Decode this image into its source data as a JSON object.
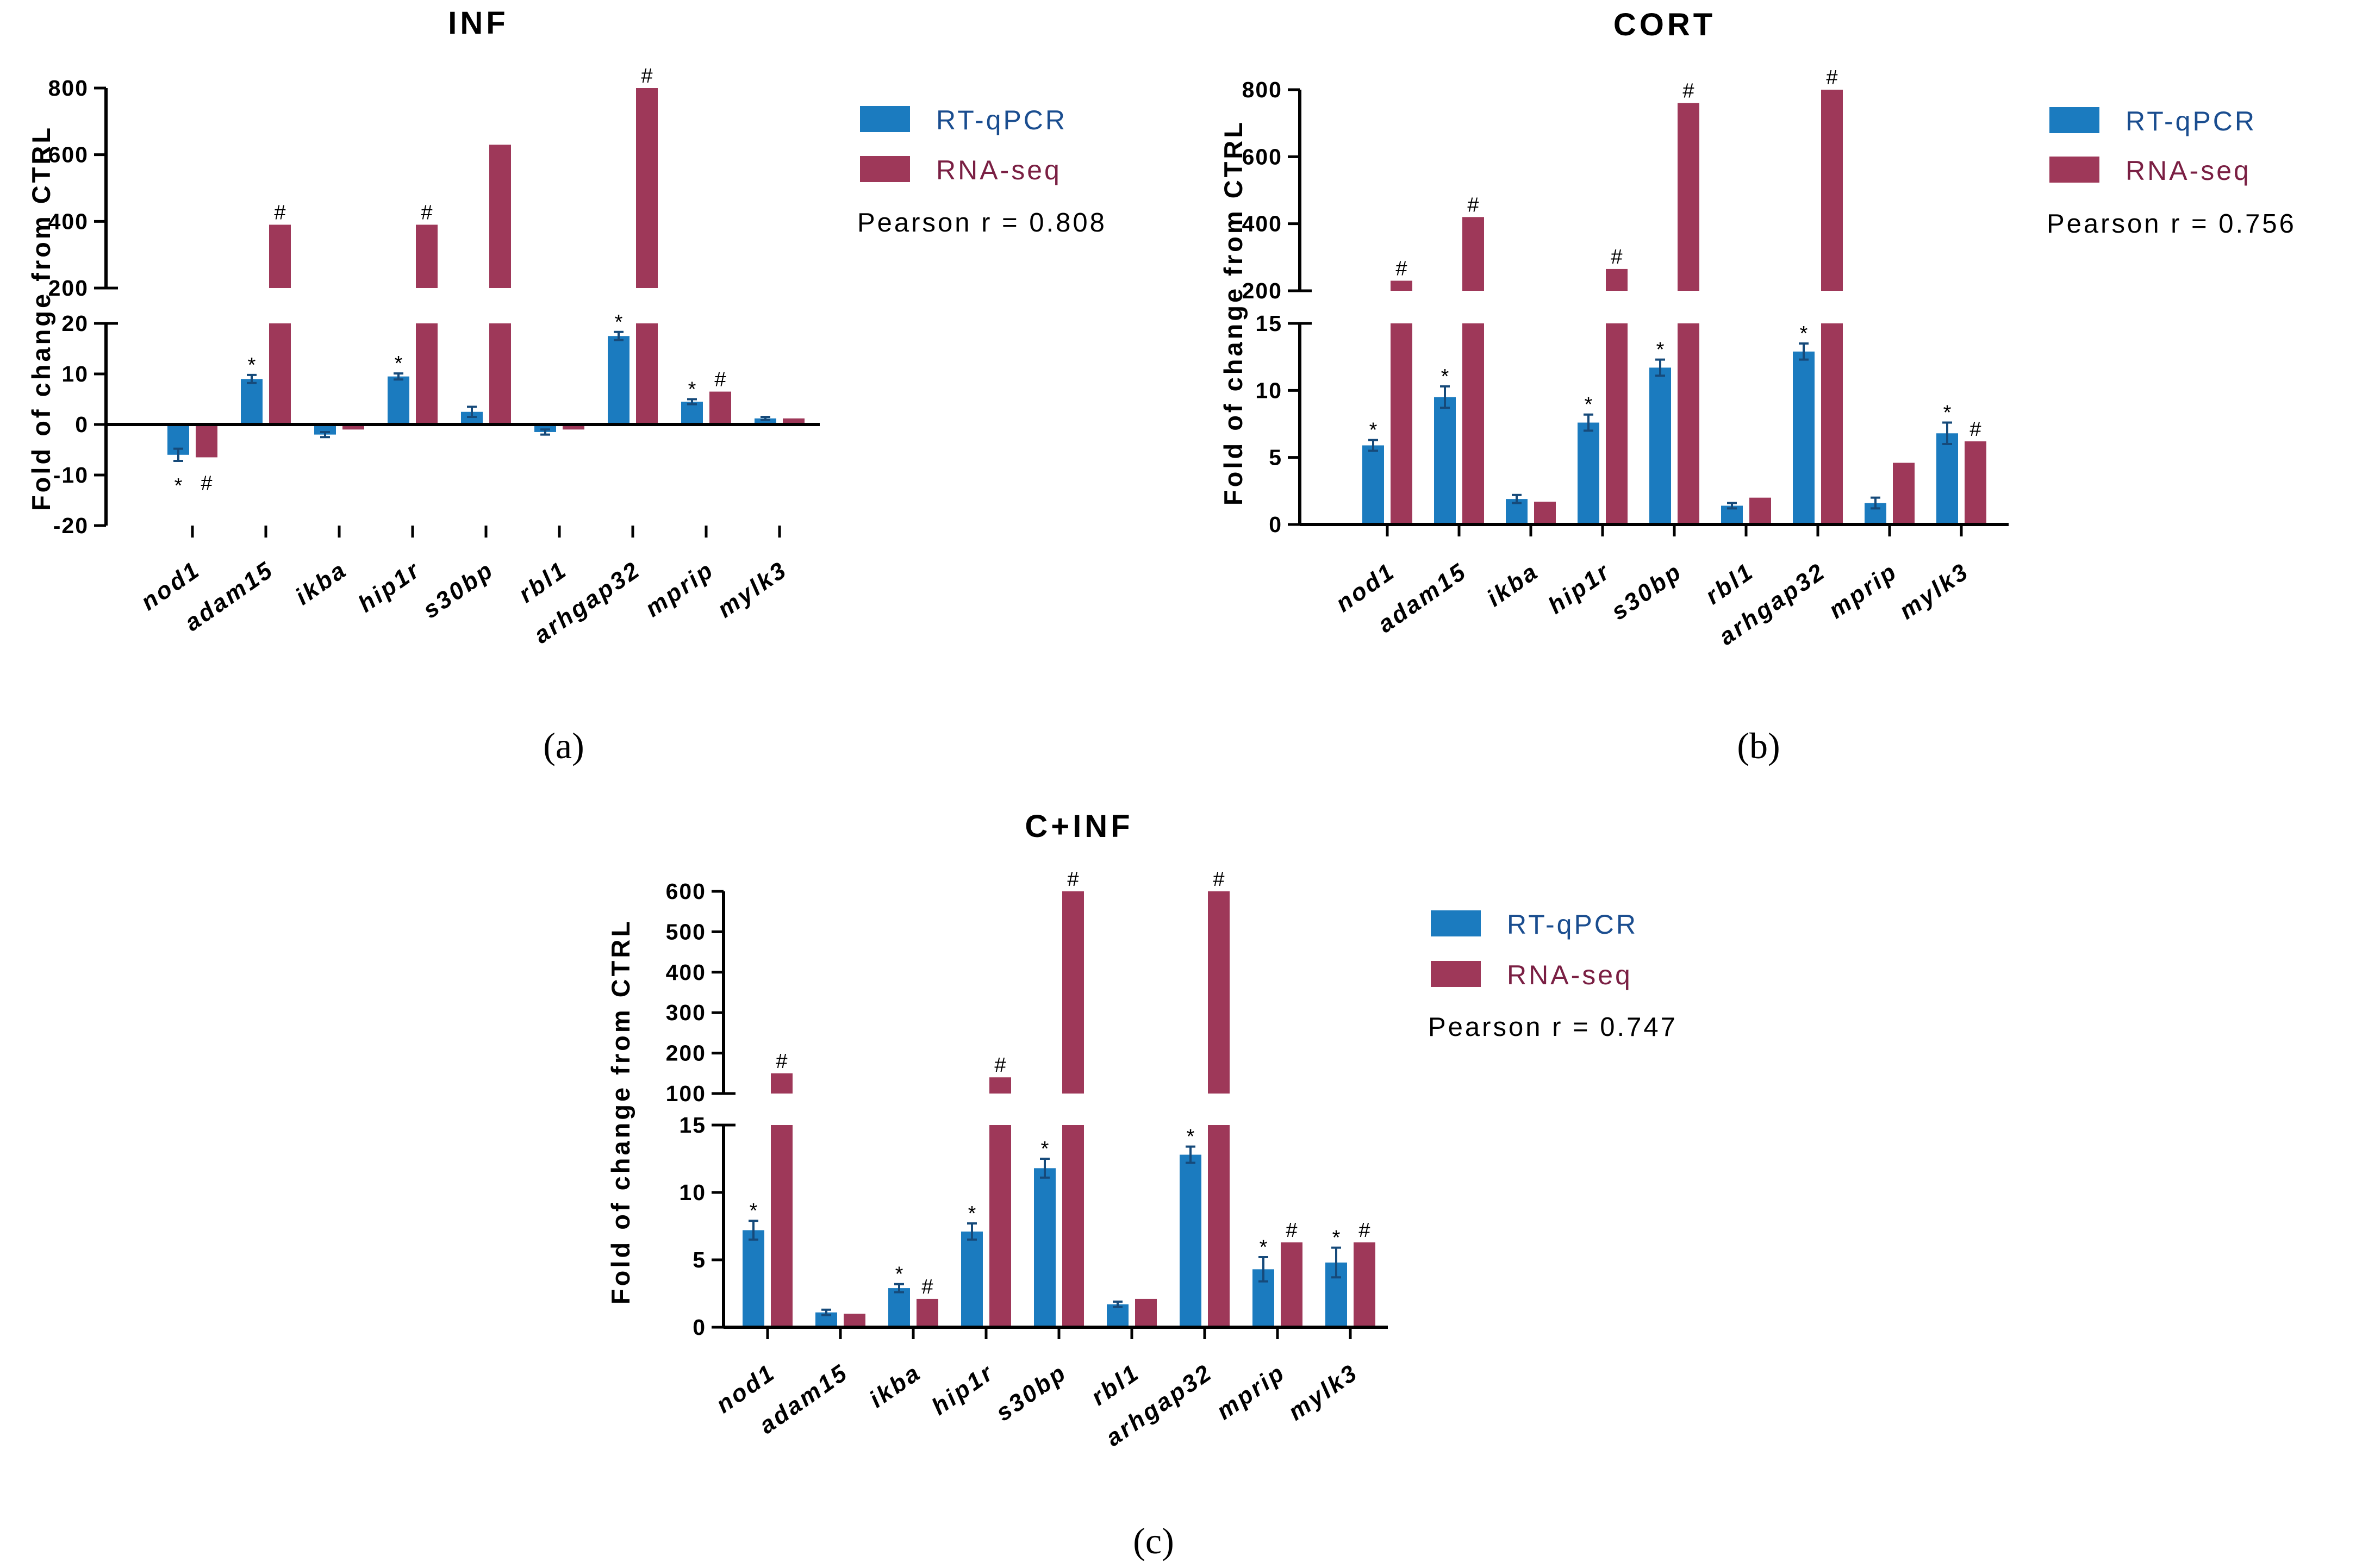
{
  "colors": {
    "rtqpcr": "#1b7bbf",
    "rnaseq": "#9e3859",
    "axis": "#000000",
    "error": "#164a7a"
  },
  "y_axis_label": "Fold of change from CTRL",
  "chart_data": [
    {
      "type": "bar",
      "title": "INF",
      "panel_label": "(a)",
      "ylabel": "Fold of change from CTRL",
      "categories": [
        "nod1",
        "adam15",
        "ikba",
        "hip1r",
        "s30bp",
        "rbl1",
        "arhgap32",
        "mprip",
        "mylk3"
      ],
      "axis_break": {
        "lower": [
          -20,
          20
        ],
        "upper": [
          200,
          800
        ]
      },
      "yticks_lower": [
        -20,
        -10,
        0,
        10,
        20
      ],
      "yticks_upper": [
        200,
        400,
        600,
        800
      ],
      "series": [
        {
          "name": "RT-qPCR",
          "values": [
            -6,
            9,
            -2,
            9.5,
            2.5,
            -1.5,
            17.5,
            4.5,
            1.2
          ],
          "errors": [
            1.2,
            0.8,
            0.5,
            0.6,
            1.0,
            0.5,
            0.8,
            0.5,
            0.3
          ],
          "marks": [
            "*",
            "*",
            "",
            "*",
            "",
            "",
            "*",
            "*",
            ""
          ]
        },
        {
          "name": "RNA-seq",
          "values": [
            -6.5,
            390,
            -1,
            390,
            630,
            -1,
            800,
            6.5,
            1.2
          ],
          "marks": [
            "#",
            "#",
            "",
            "#",
            "",
            "",
            "#",
            "#",
            ""
          ]
        }
      ],
      "pearson": "Pearson r = 0.808"
    },
    {
      "type": "bar",
      "title": "CORT",
      "panel_label": "(b)",
      "ylabel": "Fold of change from CTRL",
      "categories": [
        "nod1",
        "adam15",
        "ikba",
        "hip1r",
        "s30bp",
        "rbl1",
        "arhgap32",
        "mprip",
        "mylk3"
      ],
      "axis_break": {
        "lower": [
          0,
          15
        ],
        "upper": [
          200,
          800
        ]
      },
      "yticks_lower": [
        0,
        5,
        10,
        15
      ],
      "yticks_upper": [
        200,
        400,
        600,
        800
      ],
      "series": [
        {
          "name": "RT-qPCR",
          "values": [
            5.9,
            9.5,
            1.9,
            7.6,
            11.7,
            1.4,
            12.9,
            1.6,
            6.8
          ],
          "errors": [
            0.4,
            0.8,
            0.3,
            0.6,
            0.6,
            0.2,
            0.6,
            0.4,
            0.8
          ],
          "marks": [
            "*",
            "*",
            "",
            "*",
            "*",
            "",
            "*",
            "",
            "*"
          ]
        },
        {
          "name": "RNA-seq",
          "values": [
            230,
            420,
            1.7,
            265,
            760,
            2.0,
            800,
            4.6,
            6.2
          ],
          "marks": [
            "#",
            "#",
            "",
            "#",
            "#",
            "",
            "#",
            "",
            "#"
          ]
        }
      ],
      "pearson": "Pearson r = 0.756"
    },
    {
      "type": "bar",
      "title": "C+INF",
      "panel_label": "(c)",
      "ylabel": "Fold of change from CTRL",
      "categories": [
        "nod1",
        "adam15",
        "ikba",
        "hip1r",
        "s30bp",
        "rbl1",
        "arhgap32",
        "mprip",
        "mylk3"
      ],
      "axis_break": {
        "lower": [
          0,
          15
        ],
        "upper": [
          100,
          600
        ]
      },
      "yticks_lower": [
        0,
        5,
        10,
        15
      ],
      "yticks_upper": [
        100,
        200,
        300,
        400,
        500,
        600
      ],
      "series": [
        {
          "name": "RT-qPCR",
          "values": [
            7.2,
            1.1,
            2.9,
            7.1,
            11.8,
            1.7,
            12.8,
            4.3,
            4.8
          ],
          "errors": [
            0.7,
            0.2,
            0.3,
            0.6,
            0.7,
            0.2,
            0.6,
            0.9,
            1.1
          ],
          "marks": [
            "*",
            "",
            "*",
            "*",
            "*",
            "",
            "*",
            "*",
            "*"
          ]
        },
        {
          "name": "RNA-seq",
          "values": [
            150,
            1.0,
            2.1,
            140,
            600,
            2.1,
            600,
            6.3,
            6.3
          ],
          "marks": [
            "#",
            "",
            "#",
            "#",
            "#",
            "",
            "#",
            "#",
            "#"
          ]
        }
      ],
      "pearson": "Pearson r = 0.747"
    }
  ]
}
